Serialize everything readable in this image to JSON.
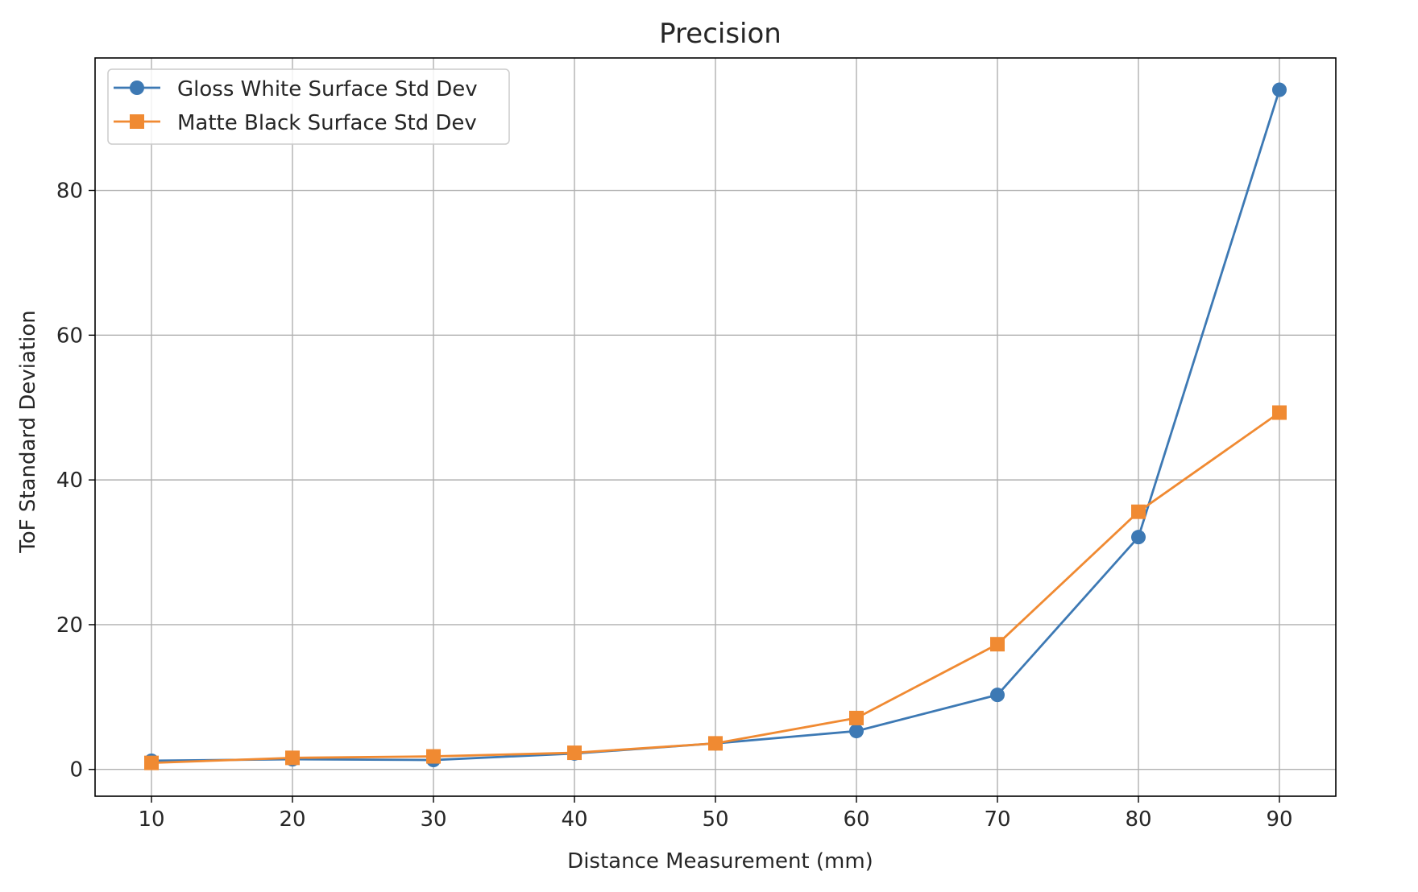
{
  "chart_data": {
    "type": "line",
    "title": "Precision",
    "xlabel": "Distance Measurement (mm)",
    "ylabel": "ToF Standard Deviation",
    "x": [
      10,
      20,
      30,
      40,
      50,
      60,
      70,
      80,
      90
    ],
    "xlim": [
      6,
      94
    ],
    "ylim": [
      -3.7,
      98.3
    ],
    "xticks": [
      10,
      20,
      30,
      40,
      50,
      60,
      70,
      80,
      90
    ],
    "yticks": [
      0,
      20,
      40,
      60,
      80
    ],
    "grid": true,
    "legend_position": "top-left",
    "series": [
      {
        "name": "Gloss White Surface Std Dev",
        "values": [
          1.2,
          1.4,
          1.3,
          2.2,
          3.6,
          5.3,
          10.3,
          32.1,
          93.9
        ],
        "color": "#3d79b4",
        "marker": "circle"
      },
      {
        "name": "Matte Black Surface Std Dev",
        "values": [
          0.9,
          1.6,
          1.8,
          2.3,
          3.6,
          7.1,
          17.3,
          35.6,
          49.3
        ],
        "color": "#f08a32",
        "marker": "square"
      }
    ]
  }
}
